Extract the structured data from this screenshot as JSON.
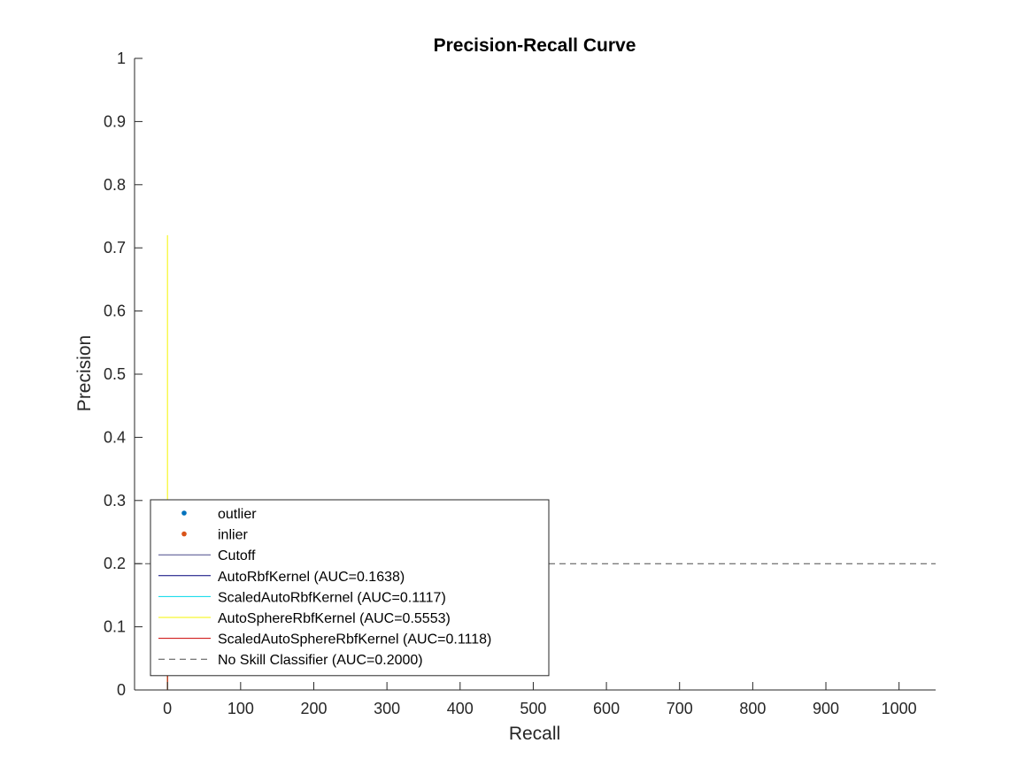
{
  "chart_data": {
    "type": "line",
    "title": "Precision-Recall Curve",
    "xlabel": "Recall",
    "ylabel": "Precision",
    "xlim": [
      -45,
      1050
    ],
    "ylim": [
      0,
      1
    ],
    "xticks": [
      0,
      100,
      200,
      300,
      400,
      500,
      600,
      700,
      800,
      900,
      1000
    ],
    "yticks": [
      0,
      0.1,
      0.2,
      0.3,
      0.4,
      0.5,
      0.6,
      0.7,
      0.8,
      0.9,
      1
    ],
    "xtick_labels": [
      "0",
      "100",
      "200",
      "300",
      "400",
      "500",
      "600",
      "700",
      "800",
      "900",
      "1000"
    ],
    "ytick_labels": [
      "0",
      "0.1",
      "0.2",
      "0.3",
      "0.4",
      "0.5",
      "0.6",
      "0.7",
      "0.8",
      "0.9",
      "1"
    ],
    "grid": false,
    "legend_position": "bottom-left",
    "series": [
      {
        "name": "outlier",
        "kind": "marker",
        "color": "#0072BD",
        "x": [],
        "y": []
      },
      {
        "name": "inlier",
        "kind": "marker",
        "color": "#D95319",
        "x": [],
        "y": []
      },
      {
        "name": "Cutoff",
        "kind": "line",
        "color": "#4a4a8a",
        "x": [],
        "y": []
      },
      {
        "name": "AutoRbfKernel (AUC=0.1638)",
        "kind": "line",
        "color": "#00007a",
        "x": [
          0,
          0
        ],
        "y": [
          0,
          0.26
        ]
      },
      {
        "name": "ScaledAutoRbfKernel (AUC=0.1117)",
        "kind": "line",
        "color": "#00d8e8",
        "x": [
          0,
          0
        ],
        "y": [
          0,
          0.2
        ]
      },
      {
        "name": "AutoSphereRbfKernel (AUC=0.5553)",
        "kind": "line",
        "color": "#f5f500",
        "x": [
          0,
          0
        ],
        "y": [
          0,
          0.72
        ]
      },
      {
        "name": "ScaledAutoSphereRbfKernel (AUC=0.1118)",
        "kind": "line",
        "color": "#cc0000",
        "x": [
          0,
          0
        ],
        "y": [
          0,
          0.21
        ]
      },
      {
        "name": "No Skill Classifier (AUC=0.2000)",
        "kind": "dashed",
        "color": "#4d4d4d",
        "x": [
          -45,
          1050
        ],
        "y": [
          0.2,
          0.2
        ]
      }
    ]
  }
}
